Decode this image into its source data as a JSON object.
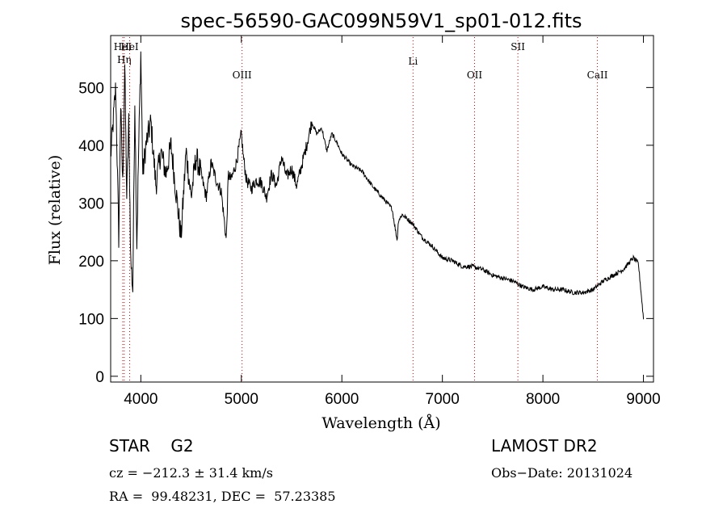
{
  "chart_data": {
    "type": "line",
    "title": "spec-56590-GAC099N59V1_sp01-012.fits",
    "xlabel": "Wavelength (Å)",
    "ylabel": "Flux (relative)",
    "xlim": [
      3700,
      9100
    ],
    "ylim": [
      -10,
      590
    ],
    "xticks": [
      4000,
      5000,
      6000,
      7000,
      8000,
      9000
    ],
    "yticks": [
      0,
      100,
      200,
      300,
      400,
      500
    ],
    "line_color": "#000000",
    "marker_color": "#cc0000",
    "series": [
      {
        "x": [
          3700,
          3750,
          3780,
          3800,
          3820,
          3840,
          3860,
          3880,
          3900,
          3920,
          3940,
          3960,
          3980,
          4000,
          4020,
          4050,
          4100,
          4150,
          4200,
          4250,
          4300,
          4350,
          4400,
          4450,
          4500,
          4550,
          4600,
          4650,
          4700,
          4750,
          4800,
          4850,
          4870,
          4900,
          4950,
          5000,
          5020,
          5050,
          5100,
          5150,
          5200,
          5250,
          5300,
          5350,
          5400,
          5450,
          5500,
          5550,
          5600,
          5650,
          5700,
          5750,
          5800,
          5850,
          5900,
          5950,
          6000,
          6100,
          6200,
          6300,
          6400,
          6500,
          6550,
          6563,
          6600,
          6700,
          6800,
          6900,
          7000,
          7100,
          7200,
          7300,
          7400,
          7500,
          7600,
          7700,
          7800,
          7900,
          8000,
          8100,
          8200,
          8300,
          8400,
          8500,
          8600,
          8700,
          8800,
          8850,
          8900,
          8950,
          9000
        ],
        "values": [
          380,
          500,
          240,
          470,
          330,
          540,
          310,
          440,
          200,
          150,
          480,
          230,
          400,
          560,
          350,
          400,
          440,
          330,
          390,
          350,
          400,
          320,
          240,
          390,
          310,
          380,
          350,
          310,
          370,
          340,
          320,
          235,
          350,
          340,
          370,
          420,
          380,
          340,
          325,
          340,
          335,
          310,
          350,
          330,
          380,
          345,
          360,
          330,
          365,
          400,
          440,
          420,
          430,
          390,
          420,
          405,
          385,
          365,
          355,
          330,
          310,
          290,
          235,
          270,
          280,
          265,
          240,
          225,
          205,
          200,
          190,
          190,
          185,
          175,
          170,
          165,
          155,
          150,
          155,
          150,
          150,
          145,
          145,
          150,
          165,
          175,
          185,
          195,
          205,
          195,
          100
        ]
      }
    ],
    "lines": [
      {
        "label": "HeI",
        "x": 3820
      },
      {
        "label": "Hη",
        "x": 3835
      },
      {
        "label": "HeI",
        "x": 3889
      },
      {
        "label": "OIII",
        "x": 5007
      },
      {
        "label": "Li",
        "x": 6708
      },
      {
        "label": "OII",
        "x": 7320
      },
      {
        "label": "SII",
        "x": 7751
      },
      {
        "label": "CaII",
        "x": 8542
      }
    ]
  },
  "info": {
    "obj_class": "STAR    G2",
    "survey": "LAMOST DR2",
    "cz": "cz = −212.3 ± 31.4 km/s",
    "obs_date": "Obs−Date: 20131024",
    "radec": "RA =  99.48231, DEC =  57.23385"
  }
}
